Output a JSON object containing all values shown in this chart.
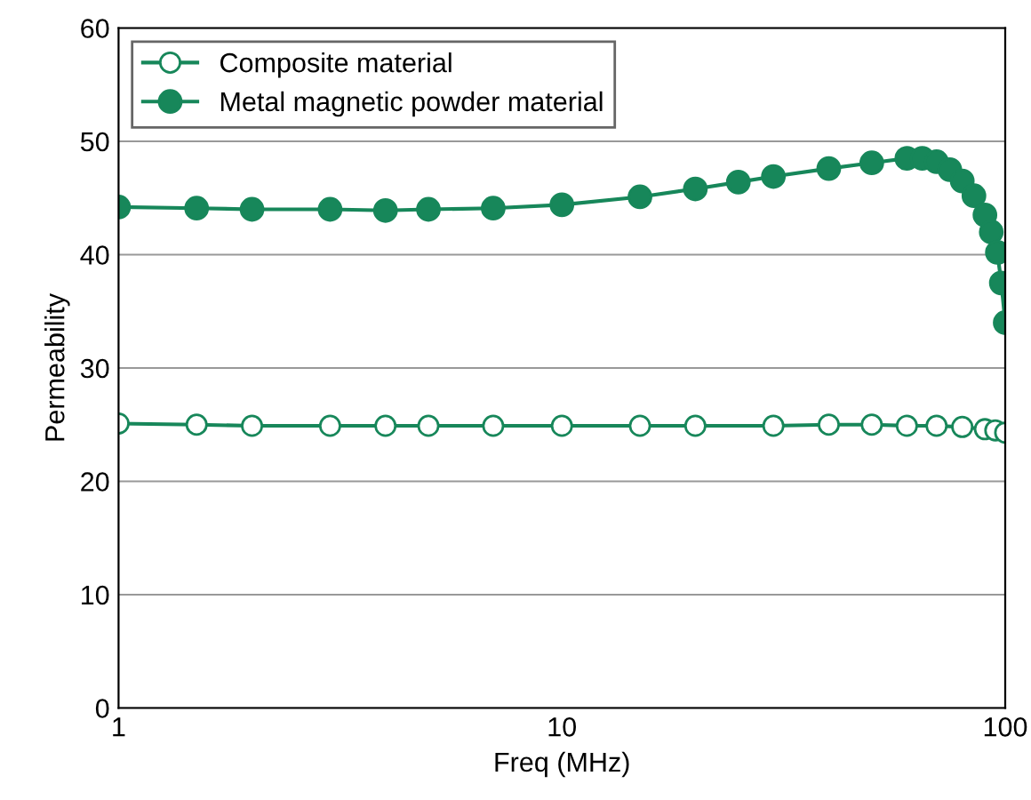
{
  "chart_data": {
    "type": "line",
    "xlabel": "Freq (MHz)",
    "ylabel": "Permeability",
    "log": "x",
    "xlim": [
      1,
      100
    ],
    "xticks": [
      1,
      10,
      100
    ],
    "ylim": [
      0,
      60
    ],
    "yticks": [
      0,
      10,
      20,
      30,
      40,
      50,
      60
    ],
    "grid": "y",
    "legend": "top left",
    "marker": "circle",
    "series": [
      {
        "name": "Composite material",
        "color": "#17875a",
        "x": [
          1,
          1.5,
          2,
          3,
          4,
          5,
          7,
          10,
          15,
          20,
          30,
          40,
          50,
          60,
          70,
          80,
          90,
          95,
          100
        ],
        "values": [
          25.1,
          25,
          24.9,
          24.9,
          24.9,
          24.9,
          24.9,
          24.9,
          24.9,
          24.9,
          24.9,
          25,
          25,
          24.9,
          24.9,
          24.8,
          24.6,
          24.5,
          24.3
        ]
      },
      {
        "name": "Metal magnetic powder material",
        "color": "#17875a",
        "x": [
          1,
          1.5,
          2,
          3,
          4,
          5,
          7,
          10,
          15,
          20,
          25,
          30,
          40,
          50,
          60,
          65,
          70,
          75,
          80,
          85,
          90,
          93,
          96,
          98,
          100
        ],
        "values": [
          44.2,
          44.1,
          44,
          44,
          43.9,
          44,
          44.1,
          44.4,
          45.1,
          45.8,
          46.4,
          46.9,
          47.6,
          48.1,
          48.5,
          48.5,
          48.2,
          47.5,
          46.5,
          45.2,
          43.5,
          42,
          40.2,
          37.5,
          34
        ]
      }
    ]
  }
}
